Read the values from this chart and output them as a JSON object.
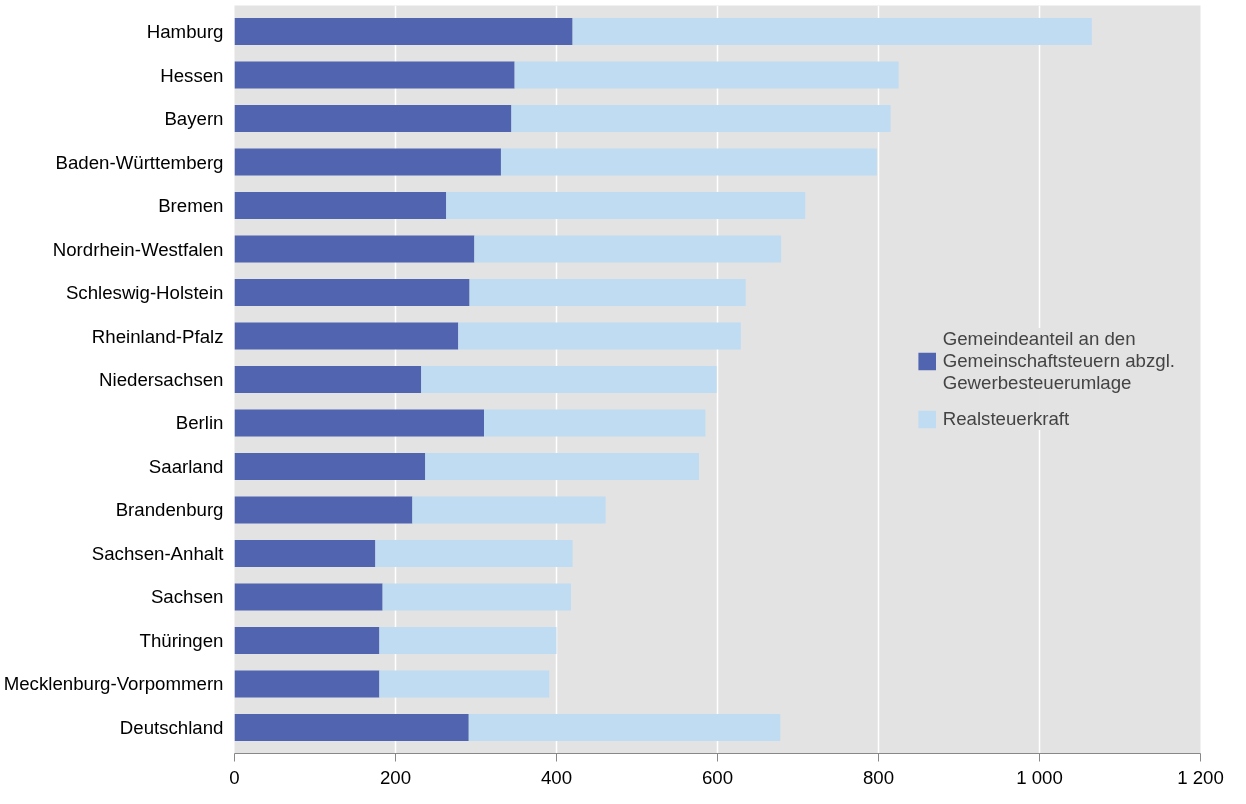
{
  "chart_data": {
    "type": "bar",
    "orientation": "horizontal",
    "stacked": true,
    "categories": [
      "Hamburg",
      "Hessen",
      "Bayern",
      "Baden-Württemberg",
      "Bremen",
      "Nordrhein-Westfalen",
      "Schleswig-Holstein",
      "Rheinland-Pfalz",
      "Niedersachsen",
      "Berlin",
      "Saarland",
      "Brandenburg",
      "Sachsen-Anhalt",
      "Sachsen",
      "Thüringen",
      "Mecklenburg-Vorpommern",
      "Deutschland"
    ],
    "series": [
      {
        "name": "Gemeindeanteil an den Gemeinschaftsteuern abzgl. Gewerbesteuerumlage",
        "color": "#5064b0",
        "values": [
          420,
          348,
          344,
          331,
          263,
          298,
          292,
          278,
          232,
          310,
          237,
          221,
          175,
          184,
          180,
          180,
          291
        ]
      },
      {
        "name": "Realsteuerkraft",
        "color": "#bfdcf2",
        "values": [
          645,
          477,
          471,
          467,
          446,
          381,
          343,
          351,
          367,
          275,
          340,
          240,
          245,
          234,
          220,
          211,
          387
        ]
      }
    ],
    "xlim": [
      0,
      1200
    ],
    "xticks": [
      0,
      200,
      400,
      600,
      800,
      {
        "value": 1000,
        "label": "1 000"
      },
      {
        "value": 1200,
        "label": "1 200"
      }
    ],
    "grid": "x",
    "legend": "right"
  }
}
